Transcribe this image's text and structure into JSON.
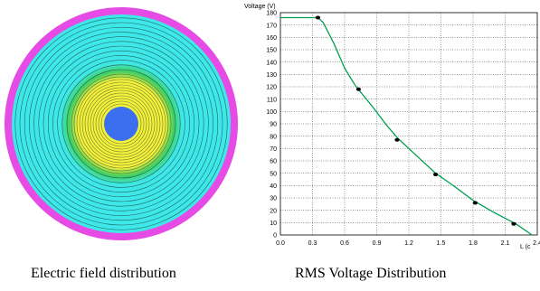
{
  "captions": {
    "left": "Electric field distribution",
    "right": "RMS Voltage Distribution"
  },
  "field_plot": {
    "colors": {
      "outer_ring": "#e64be6",
      "outer_region": "#3ee8e8",
      "transition": "#40d060",
      "inner_region": "#f2f23a",
      "core": "#3b6ff0",
      "contour": "#1a3a3a"
    }
  },
  "chart_data": {
    "type": "line",
    "ylabel": "Voltage (V)",
    "xlabel": "L (c",
    "xlim": [
      0,
      2.4
    ],
    "ylim": [
      0,
      180
    ],
    "x_ticks": [
      0.0,
      0.3,
      0.6,
      0.9,
      1.2,
      1.5,
      1.8,
      2.1,
      2.4
    ],
    "x_tick_labels": [
      "0.0",
      "0.3",
      "0.6",
      "0.9",
      "1.2",
      "1.5",
      "1.8",
      "2.1",
      "2.4"
    ],
    "y_ticks": [
      0,
      10,
      20,
      30,
      40,
      50,
      60,
      70,
      80,
      90,
      100,
      110,
      120,
      130,
      140,
      150,
      160,
      170,
      180
    ],
    "grid": true,
    "line_color": "#00a050",
    "marker_color": "#000000",
    "series": [
      {
        "x": [
          0.0,
          0.35,
          0.4,
          0.5,
          0.6,
          0.7,
          0.85,
          1.0,
          1.1,
          1.3,
          1.45,
          1.6,
          1.8,
          2.0,
          2.2,
          2.3,
          2.35
        ],
        "values": [
          176,
          176,
          172,
          155,
          135,
          121,
          105,
          88,
          78,
          62,
          50,
          41,
          28,
          18,
          9,
          3,
          0
        ]
      }
    ],
    "markers": {
      "x": [
        0.35,
        0.73,
        1.09,
        1.45,
        1.82,
        2.18
      ],
      "values": [
        176,
        118,
        77,
        49,
        26,
        9
      ]
    }
  }
}
